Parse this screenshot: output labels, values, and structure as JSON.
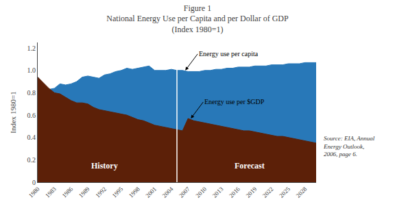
{
  "chart_data": {
    "type": "area",
    "title": "Figure 1\nNational Energy Use per Capita and per Dollar of GDP\n(Index 1980=1)",
    "ylabel": "Index 1980=1",
    "xlim": [
      1980,
      2030
    ],
    "xticks": [
      1980,
      1983,
      1986,
      1989,
      1992,
      1995,
      1998,
      2001,
      2004,
      2007,
      2010,
      2013,
      2016,
      2019,
      2022,
      2025,
      2028
    ],
    "ylim": [
      0,
      1.25
    ],
    "yticks": [
      0,
      0.2,
      0.4,
      0.6,
      0.8,
      {
        "value": 1,
        "label": "1.0"
      },
      1.2
    ],
    "grid": false,
    "series": [
      {
        "color": "#2878b8",
        "x": [
          1980,
          1981,
          1982,
          1983,
          1984,
          1985,
          1986,
          1987,
          1988,
          1989,
          1990,
          1991,
          1992,
          1993,
          1994,
          1995,
          1996,
          1997,
          1998,
          1999,
          2000,
          2001,
          2002,
          2003,
          2004,
          2005
        ],
        "values": [
          0.94,
          0.88,
          0.83,
          0.84,
          0.88,
          0.87,
          0.88,
          0.9,
          0.94,
          0.95,
          0.94,
          0.93,
          0.96,
          0.97,
          0.99,
          1.0,
          1.02,
          1.01,
          1.02,
          1.03,
          1.04,
          1.0,
          1.0,
          1.0,
          1.01,
          1.0
        ]
      },
      {
        "color": "#5c2008",
        "x": [
          1980,
          1981,
          1982,
          1983,
          1984,
          1985,
          1986,
          1987,
          1988,
          1989,
          1990,
          1991,
          1992,
          1993,
          1994,
          1995,
          1996,
          1997,
          1998,
          1999,
          2000,
          2001,
          2002,
          2003,
          2004,
          2005
        ],
        "values": [
          0.94,
          0.89,
          0.84,
          0.8,
          0.79,
          0.76,
          0.73,
          0.71,
          0.71,
          0.7,
          0.67,
          0.65,
          0.64,
          0.63,
          0.62,
          0.61,
          0.6,
          0.58,
          0.56,
          0.55,
          0.53,
          0.51,
          0.5,
          0.49,
          0.48,
          0.47
        ]
      },
      {
        "color": "#2878b8",
        "x": [
          2005,
          2006,
          2007,
          2008,
          2009,
          2010,
          2011,
          2012,
          2013,
          2014,
          2015,
          2016,
          2017,
          2018,
          2019,
          2020,
          2021,
          2022,
          2023,
          2024,
          2025,
          2026,
          2027,
          2028,
          2029,
          2030
        ],
        "values": [
          1.0,
          1.0,
          0.99,
          0.99,
          0.99,
          1.0,
          1.0,
          1.01,
          1.01,
          1.02,
          1.02,
          1.03,
          1.03,
          1.03,
          1.04,
          1.04,
          1.04,
          1.05,
          1.05,
          1.05,
          1.06,
          1.06,
          1.06,
          1.07,
          1.07,
          1.07
        ]
      },
      {
        "color": "#5c2008",
        "x": [
          2005,
          2006,
          2007,
          2008,
          2009,
          2010,
          2011,
          2012,
          2013,
          2014,
          2015,
          2016,
          2017,
          2018,
          2019,
          2020,
          2021,
          2022,
          2023,
          2024,
          2025,
          2026,
          2027,
          2028,
          2029,
          2030
        ],
        "values": [
          0.47,
          0.46,
          0.57,
          0.55,
          0.54,
          0.53,
          0.52,
          0.51,
          0.5,
          0.49,
          0.48,
          0.47,
          0.46,
          0.46,
          0.45,
          0.44,
          0.43,
          0.42,
          0.41,
          0.41,
          0.4,
          0.39,
          0.38,
          0.37,
          0.36,
          0.35
        ]
      }
    ],
    "vline": 2005,
    "area_labels": [
      {
        "text": "History",
        "x": 1992,
        "y": 0.09
      },
      {
        "text": "Forecast",
        "x": 2018,
        "y": 0.09
      }
    ],
    "annotations": [
      {
        "text": "Energy use per capita",
        "x": 2006.5,
        "y": 1.0
      },
      {
        "text": "Energy use per $GDP",
        "x": 2007.5,
        "y": 0.57
      }
    ],
    "source": "Source: EIA, Annual\nEnergy Outlook,\n2006, page 6."
  }
}
